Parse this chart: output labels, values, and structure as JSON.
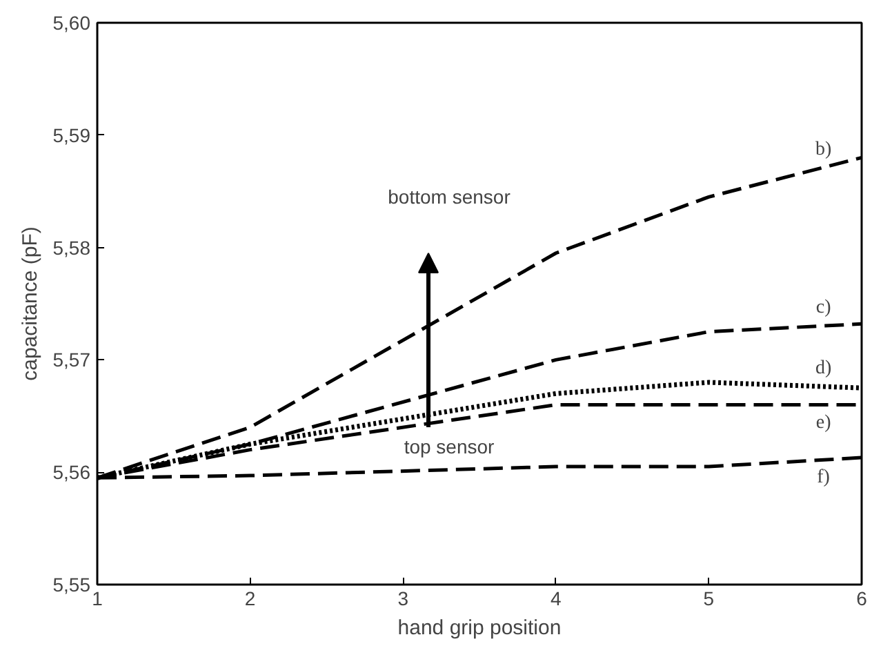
{
  "chart_data": {
    "type": "line",
    "xlabel": "hand grip position",
    "ylabel": "capacitance (pF)",
    "x": [
      1,
      2,
      4,
      5,
      6
    ],
    "xlim": [
      1,
      6
    ],
    "xticks": [
      1,
      2,
      3,
      4,
      5,
      6
    ],
    "ylim": [
      5.55,
      5.6
    ],
    "yticks": [
      {
        "value": 5.55,
        "label": "5,55"
      },
      {
        "value": 5.56,
        "label": "5,56"
      },
      {
        "value": 5.57,
        "label": "5,57"
      },
      {
        "value": 5.58,
        "label": "5,58"
      },
      {
        "value": 5.59,
        "label": "5,59"
      },
      {
        "value": 5.6,
        "label": "5,60"
      }
    ],
    "grid": false,
    "marker": "none",
    "series": [
      {
        "name": "b)",
        "color": "#000000",
        "line_style": "dashed",
        "values": [
          5.5595,
          5.564,
          5.5795,
          5.5845,
          5.588
        ]
      },
      {
        "name": "c)",
        "color": "#000000",
        "line_style": "dashed",
        "values": [
          5.5595,
          5.5625,
          5.57,
          5.5725,
          5.5732
        ]
      },
      {
        "name": "d)",
        "color": "#000000",
        "line_style": "dotted",
        "values": [
          5.5595,
          5.5625,
          5.567,
          5.568,
          5.5675
        ]
      },
      {
        "name": "e)",
        "color": "#000000",
        "line_style": "dashed",
        "values": [
          5.5595,
          5.562,
          5.566,
          5.566,
          5.566
        ]
      },
      {
        "name": "f)",
        "color": "#000000",
        "line_style": "dashed",
        "values": [
          5.5595,
          5.5597,
          5.5605,
          5.5605,
          5.5613
        ]
      }
    ],
    "annotations": [
      "bottom sensor",
      "top sensor"
    ]
  }
}
